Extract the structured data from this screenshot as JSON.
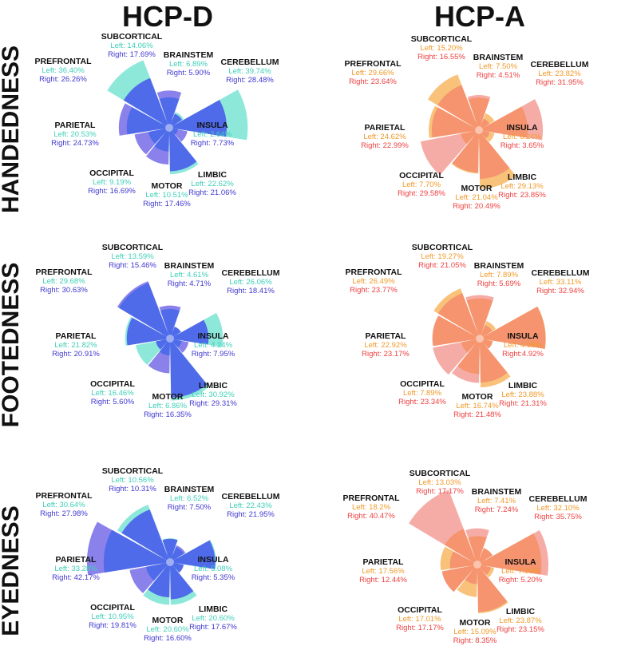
{
  "header": {
    "left_title": "HCP-D",
    "right_title": "HCP-A"
  },
  "rows": [
    "HANDEDNESS",
    "FOOTEDNESS",
    "EYEDNESS"
  ],
  "colors": {
    "hcpd_left": "#8de8da",
    "hcpd_right": "#8a82ea",
    "hcpd_overlap": "#4f6bea",
    "hcpd_left_text": "#3fcfb8",
    "hcpd_right_text": "#4038d0",
    "hcpa_left": "#f8c27a",
    "hcpa_right": "#f6aca6",
    "hcpa_overlap": "#f5946e",
    "hcpa_left_text": "#f09a2a",
    "hcpa_right_text": "#ee4040"
  },
  "chart_data": [
    {
      "type": "polar-bar",
      "dataset": "HCP-D",
      "row": "HANDEDNESS",
      "series_names": [
        "Left",
        "Right"
      ],
      "categories": [
        "SUBCORTICAL",
        "BRAINSTEM",
        "CEREBELLUM",
        "INSULA",
        "LIMBIC",
        "MOTOR",
        "OCCIPITAL",
        "PARIETAL",
        "PREFRONTAL"
      ],
      "left": [
        14.06,
        6.89,
        39.74,
        2.64,
        22.62,
        10.51,
        9.19,
        20.53,
        36.4
      ],
      "right": [
        17.69,
        5.9,
        28.48,
        7.73,
        21.06,
        17.46,
        16.69,
        24.73,
        26.26
      ],
      "left_text": [
        "Left: 14.06%",
        "Left: 6.89%",
        "Left: 39.74%",
        "Left: 2.64%",
        "Left: 22.62%",
        "Left: 10.51%",
        "Left: 9.19%",
        "Left: 20.53%",
        "Left: 36.40%"
      ],
      "right_text": [
        "Right: 17.69%",
        "Right: 5.90%",
        "Right: 28.48%",
        "Right: 7.73%",
        "Right: 21.06%",
        "Right: 17.46%",
        "Right: 16.69%",
        "Right: 24.73%",
        "Right: 26.26%"
      ]
    },
    {
      "type": "polar-bar",
      "dataset": "HCP-A",
      "row": "HANDEDNESS",
      "series_names": [
        "Left",
        "Right"
      ],
      "categories": [
        "SUBCORTICAL",
        "BRAINSTEM",
        "CEREBELLUM",
        "INSULA",
        "LIMBIC",
        "MOTOR",
        "OCCIPITAL",
        "PARIETAL",
        "PREFRONTAL"
      ],
      "left": [
        15.2,
        7.5,
        23.82,
        6.24,
        29.13,
        21.04,
        7.7,
        24.62,
        29.66
      ],
      "right": [
        16.55,
        4.51,
        31.95,
        3.65,
        23.85,
        20.49,
        29.58,
        22.99,
        23.64
      ],
      "left_text": [
        "Left: 15.20%",
        "Left: 7.50%",
        "Left: 23.82%",
        "Left: 6.24%",
        "Left: 29.13%",
        "Left: 21.04%",
        "Left: 7.70%",
        "Left: 24.62%",
        "Left: 29.66%"
      ],
      "right_text": [
        "Right: 16.55%",
        "Right: 4.51%",
        "Right: 31.95%",
        "Right: 3.65%",
        "Right: 23.85%",
        "Right: 20.49%",
        "Right: 29.58%",
        "Right: 22.99%",
        "Right: 23.64%"
      ]
    },
    {
      "type": "polar-bar",
      "dataset": "HCP-D",
      "row": "FOOTEDNESS",
      "series_names": [
        "Left",
        "Right"
      ],
      "categories": [
        "SUBCORTICAL",
        "BRAINSTEM",
        "CEREBELLUM",
        "INSULA",
        "LIMBIC",
        "MOTOR",
        "OCCIPITAL",
        "PARIETAL",
        "PREFRONTAL"
      ],
      "left": [
        13.59,
        4.61,
        26.06,
        4.24,
        30.92,
        6.86,
        16.46,
        21.82,
        29.68
      ],
      "right": [
        15.46,
        4.71,
        18.41,
        7.95,
        29.31,
        16.35,
        5.6,
        20.91,
        30.63
      ],
      "left_text": [
        "Left: 13.59%",
        "Left: 4.61%",
        "Left: 26.06%",
        "Left: 4.24%",
        "Left: 30.92%",
        "Left: 6.86%",
        "Left: 16.46%",
        "Left: 21.82%",
        "Left: 29.68%"
      ],
      "right_text": [
        "Right: 15.46%",
        "Right: 4.71%",
        "Right: 18.41%",
        "Right: 7.95%",
        "Right: 29.31%",
        "Right: 16.35%",
        "Right: 5.60%",
        "Right: 20.91%",
        "Right: 30.63%"
      ]
    },
    {
      "type": "polar-bar",
      "dataset": "HCP-A",
      "row": "FOOTEDNESS",
      "series_names": [
        "Left",
        "Right"
      ],
      "categories": [
        "SUBCORTICAL",
        "BRAINSTEM",
        "CEREBELLUM",
        "INSULA",
        "LIMBIC",
        "MOTOR",
        "OCCIPITAL",
        "PARIETAL",
        "PREFRONTAL"
      ],
      "left": [
        19.27,
        7.89,
        33.11,
        4.99,
        23.88,
        16.74,
        7.89,
        22.92,
        26.49
      ],
      "right": [
        21.05,
        5.69,
        32.94,
        4.92,
        21.31,
        21.48,
        23.34,
        23.17,
        23.77
      ],
      "left_text": [
        "Left: 19.27%",
        "Left: 7.89%",
        "Left: 33.11%",
        "Left: 4.99%",
        "Left: 23.88%",
        "Left: 16.74%",
        "Left: 7.89%",
        "Left: 22.92%",
        "Left: 26.49%"
      ],
      "right_text": [
        "Right: 21.05%",
        "Right: 5.69%",
        "Right: 32.94%",
        "Right:4.92%",
        "Right: 21.31%",
        "Right: 21.48%",
        "Right: 23.34%",
        "Right: 23.17%",
        "Right: 23.77%"
      ]
    },
    {
      "type": "polar-bar",
      "dataset": "HCP-D",
      "row": "EYEDNESS",
      "series_names": [
        "Left",
        "Right"
      ],
      "categories": [
        "SUBCORTICAL",
        "BRAINSTEM",
        "CEREBELLUM",
        "INSULA",
        "LIMBIC",
        "MOTOR",
        "OCCIPITAL",
        "PARIETAL",
        "PREFRONTAL"
      ],
      "left": [
        10.56,
        6.52,
        22.43,
        5.08,
        20.6,
        20.6,
        10.95,
        33.28,
        30.64
      ],
      "right": [
        10.31,
        7.5,
        21.95,
        5.35,
        17.67,
        16.6,
        19.81,
        42.17,
        27.98
      ],
      "left_text": [
        "Left: 10.56%",
        "Left: 6.52%",
        "Left: 22.43%",
        "Left: 5.08%",
        "Left: 20.60%",
        "Left: 20.60%",
        "Left: 10.95%",
        "Left: 33.28%",
        "Left: 30.64%"
      ],
      "right_text": [
        "Right: 10.31%",
        "Right: 7.50%",
        "Right: 21.95%",
        "Right: 5.35%",
        "Right: 17.67%",
        "Right: 16.60%",
        "Right: 19.81%",
        "Right: 42.17%",
        "Right: 27.98%"
      ]
    },
    {
      "type": "polar-bar",
      "dataset": "HCP-A",
      "row": "EYEDNESS",
      "series_names": [
        "Left",
        "Right"
      ],
      "categories": [
        "SUBCORTICAL",
        "BRAINSTEM",
        "CEREBELLUM",
        "INSULA",
        "LIMBIC",
        "MOTOR",
        "OCCIPITAL",
        "PARIETAL",
        "PREFRONTAL"
      ],
      "left": [
        13.03,
        7.41,
        32.1,
        7.0,
        23.87,
        15.09,
        17.01,
        17.56,
        18.2
      ],
      "right": [
        17.17,
        7.24,
        35.75,
        5.2,
        23.15,
        8.35,
        17.17,
        12.44,
        40.47
      ],
      "left_text": [
        "Left: 13.03%",
        "Left: 7.41%",
        "Left: 32.10%",
        "Left: 7.00%",
        "Left: 23.87%",
        "Left: 15.09%",
        "Left: 17.01%",
        "Left: 17.56%",
        "Left: 18.2%"
      ],
      "right_text": [
        "Right: 17.17%",
        "Right: 7.24%",
        "Right: 35.75%",
        "Right: 5.20%",
        "Right: 23.15%",
        "Right: 8.35%",
        "Right: 17.17%",
        "Right: 12.44%",
        "Right: 40.47%"
      ]
    }
  ]
}
